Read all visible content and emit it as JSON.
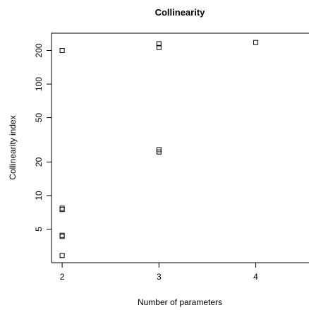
{
  "chart_data": {
    "type": "scatter",
    "title": "Collinearity",
    "x_label": "Number of parameters",
    "y_label": "Collinearity index",
    "x": [
      2,
      2,
      2,
      2,
      2,
      2,
      3,
      3,
      3,
      3,
      4
    ],
    "values": [
      200,
      7.7,
      7.5,
      4.4,
      4.3,
      2.9,
      230,
      213,
      25.8,
      24.6,
      236
    ],
    "color": "#000000",
    "xlim": [
      1.89,
      4.55
    ],
    "ylim": [
      2.5,
      286
    ],
    "xticks": [
      2,
      3,
      4
    ],
    "yticks": [
      5,
      10,
      20,
      50,
      100,
      200
    ],
    "log_y": true,
    "grid": false
  }
}
